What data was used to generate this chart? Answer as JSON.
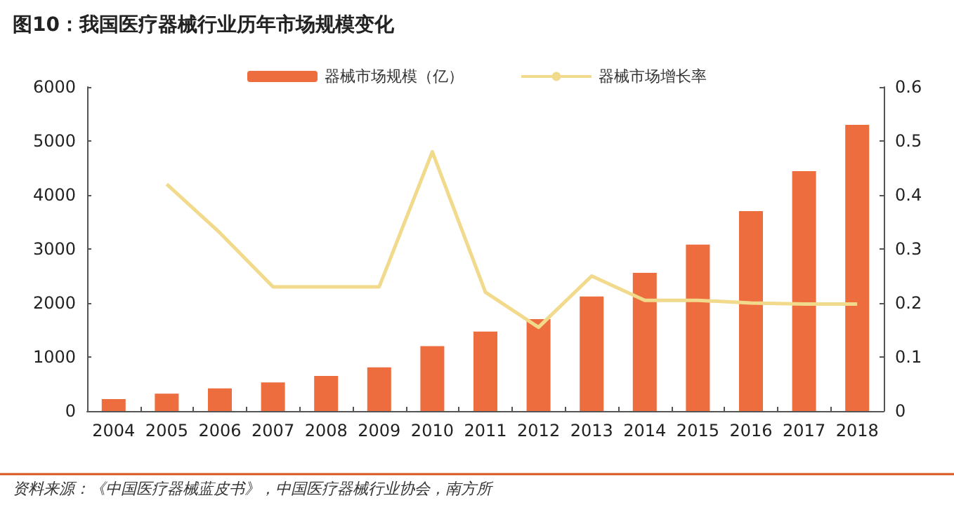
{
  "chart_data": {
    "type": "bar",
    "title": "图10：我国医疗器械行业历年市场规模变化",
    "categories": [
      "2004",
      "2005",
      "2006",
      "2007",
      "2008",
      "2009",
      "2010",
      "2011",
      "2012",
      "2013",
      "2014",
      "2015",
      "2016",
      "2017",
      "2018"
    ],
    "series": [
      {
        "name": "器械市场规模（亿）",
        "color": "#ed6d3f",
        "values": [
          220,
          320,
          420,
          530,
          650,
          810,
          1200,
          1470,
          1700,
          2120,
          2560,
          3080,
          3700,
          4440,
          5300
        ]
      },
      {
        "name": "器械市场增长率",
        "type": "line",
        "axis": "y2",
        "color": "#f2da8c",
        "values": [
          null,
          0.42,
          0.33,
          0.23,
          0.23,
          0.23,
          0.48,
          0.22,
          0.155,
          0.25,
          0.205,
          0.205,
          0.2,
          0.198,
          0.198
        ]
      }
    ],
    "ylim": [
      0,
      6000
    ],
    "yticks": [
      0,
      1000,
      2000,
      3000,
      4000,
      5000,
      6000
    ],
    "y2lim": [
      0,
      0.6
    ],
    "y2ticks": [
      0,
      0.1,
      0.2,
      0.3,
      0.4,
      0.5,
      0.6
    ],
    "grid": false,
    "legend": "top",
    "marker": "none",
    "annotations": [
      "资料来源：《中国医疗器械蓝皮书》，中国医疗器械行业协会，南方所"
    ]
  }
}
